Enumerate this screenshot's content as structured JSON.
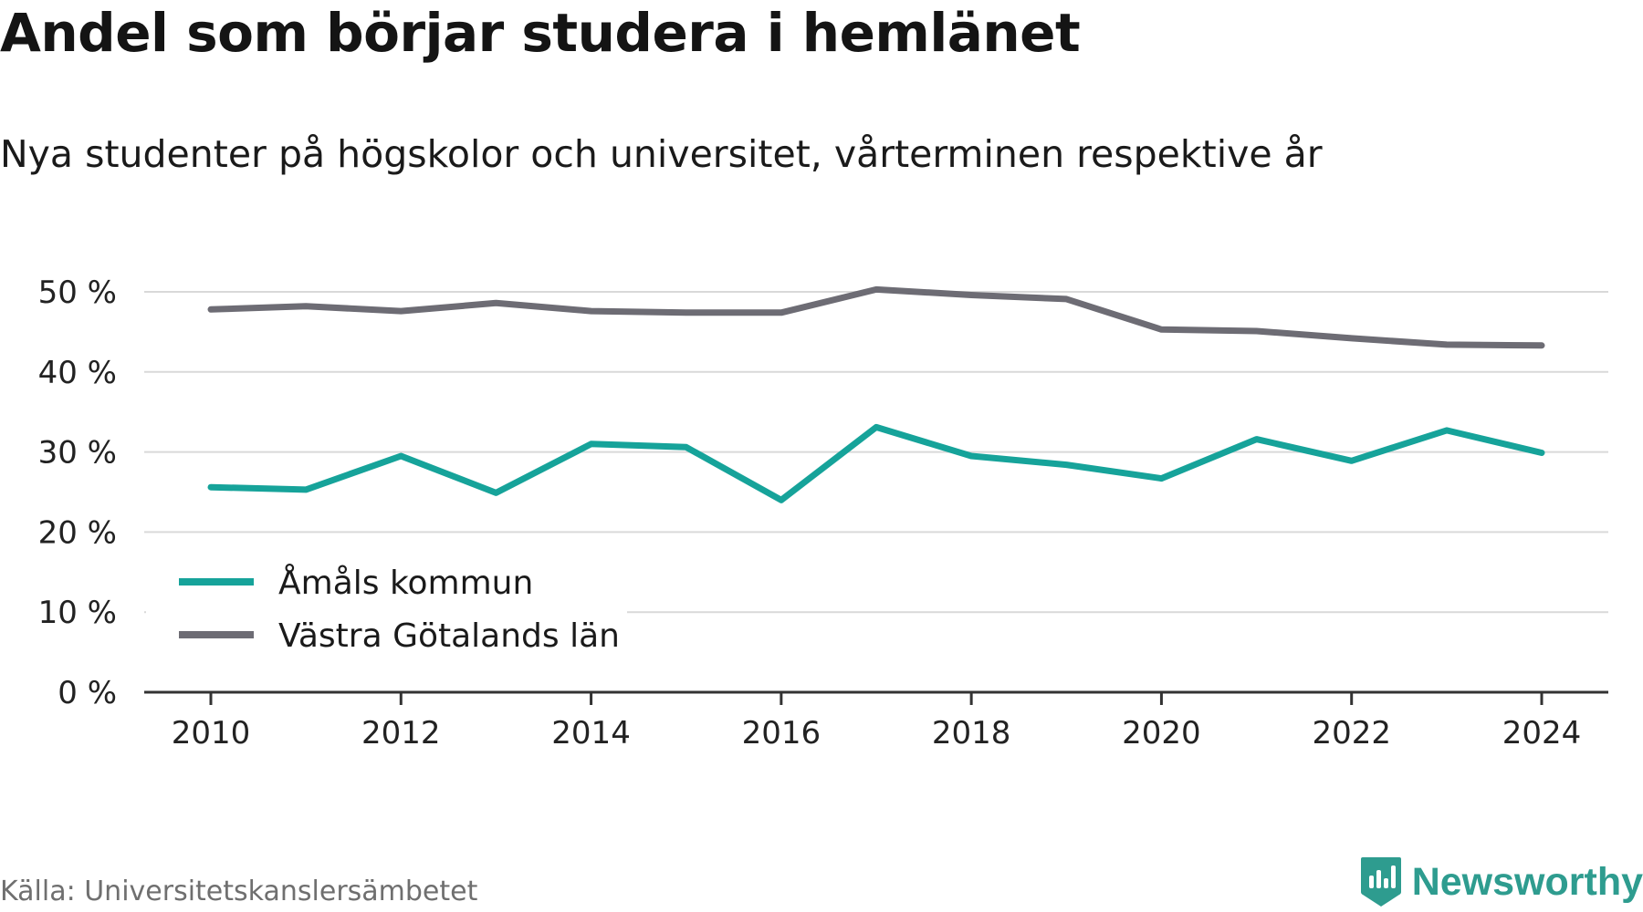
{
  "header": {
    "title": "Andel som börjar studera i hemlänet",
    "subtitle": "Nya studenter på högskolor och universitet, vårterminen respektive år"
  },
  "footer": {
    "source": "Källa: Universitetskanslersämbetet",
    "brand": "Newsworthy",
    "brand_icon": "newsworthy-logo-icon",
    "brand_color": "#2e9c8f"
  },
  "chart_data": {
    "type": "line",
    "x": [
      2010,
      2011,
      2012,
      2013,
      2014,
      2015,
      2016,
      2017,
      2018,
      2019,
      2020,
      2021,
      2022,
      2023,
      2024
    ],
    "xticks": [
      2010,
      2012,
      2014,
      2016,
      2018,
      2020,
      2022,
      2024
    ],
    "xtick_labels": [
      "2010",
      "2012",
      "2014",
      "2016",
      "2018",
      "2020",
      "2022",
      "2024"
    ],
    "yticks": [
      0,
      10,
      20,
      30,
      40,
      50
    ],
    "ytick_labels": [
      "0 %",
      "10 %",
      "20 %",
      "30 %",
      "40 %",
      "50 %"
    ],
    "ylim": [
      0,
      50
    ],
    "grid": true,
    "legend_position": "bottom-left",
    "series": [
      {
        "name": "Åmåls kommun",
        "color": "#16a39a",
        "values": [
          25.6,
          25.3,
          29.5,
          24.9,
          31.0,
          30.6,
          24.0,
          33.1,
          29.5,
          28.4,
          26.7,
          31.6,
          28.9,
          32.7,
          29.9
        ]
      },
      {
        "name": "Västra Götalands län",
        "color": "#6d6c74",
        "values": [
          47.8,
          48.2,
          47.6,
          48.6,
          47.6,
          47.4,
          47.4,
          50.3,
          49.6,
          49.1,
          45.3,
          45.1,
          44.2,
          43.4,
          43.3
        ]
      }
    ]
  }
}
